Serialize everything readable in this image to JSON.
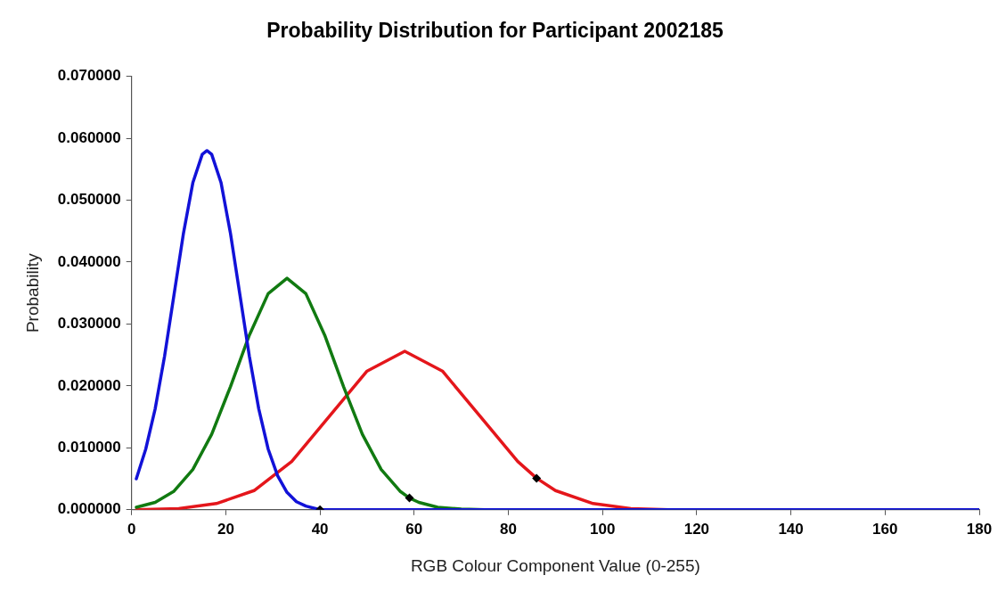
{
  "chart_data": {
    "type": "line",
    "title": "Probability Distribution for Participant 2002185",
    "xlabel": "RGB Colour Component Value (0-255)",
    "ylabel": "Probability",
    "xlim": [
      0,
      180
    ],
    "xticks": [
      0,
      20,
      40,
      60,
      80,
      100,
      120,
      140,
      160,
      180
    ],
    "ylim": [
      0,
      0.07
    ],
    "yticks": [
      {
        "value": 0,
        "label": "0.000000"
      },
      {
        "value": 0.01,
        "label": "0.010000"
      },
      {
        "value": 0.02,
        "label": "0.020000"
      },
      {
        "value": 0.03,
        "label": "0.030000"
      },
      {
        "value": 0.04,
        "label": "0.040000"
      },
      {
        "value": 0.05,
        "label": "0.050000"
      },
      {
        "value": 0.06,
        "label": "0.060000"
      },
      {
        "value": 0.07,
        "label": "0.070000"
      }
    ],
    "series": [
      {
        "color": "#e4161b",
        "x": [
          1,
          10,
          18,
          26,
          34,
          42,
          50,
          58,
          66,
          74,
          82,
          86,
          90,
          98,
          106,
          114,
          120,
          180
        ],
        "values": [
          0,
          0.0002,
          0.001,
          0.0031,
          0.0078,
          0.0151,
          0.0224,
          0.0256,
          0.0224,
          0.0151,
          0.0078,
          0.0051,
          0.0031,
          0.001,
          0.0002,
          0,
          0,
          0
        ]
      },
      {
        "color": "#117a11",
        "x": [
          1,
          5,
          9,
          13,
          17,
          21,
          25,
          29,
          33,
          37,
          41,
          45,
          49,
          53,
          57,
          59,
          61,
          65,
          70,
          75,
          180
        ],
        "values": [
          0.0004,
          0.0012,
          0.003,
          0.0065,
          0.0122,
          0.0199,
          0.0282,
          0.0349,
          0.0374,
          0.0349,
          0.0282,
          0.0199,
          0.0122,
          0.0065,
          0.003,
          0.0019,
          0.0012,
          0.0004,
          0.0001,
          0,
          0
        ]
      },
      {
        "color": "#1212d8",
        "x": [
          1,
          3,
          5,
          7,
          9,
          11,
          13,
          15,
          16,
          17,
          19,
          21,
          23,
          25,
          27,
          29,
          31,
          33,
          35,
          37,
          40,
          180
        ],
        "values": [
          0.005,
          0.0098,
          0.0163,
          0.0248,
          0.0347,
          0.0446,
          0.0528,
          0.0574,
          0.058,
          0.0574,
          0.0528,
          0.0446,
          0.0347,
          0.0248,
          0.0163,
          0.0098,
          0.0055,
          0.0028,
          0.0013,
          0.0006,
          0,
          0
        ]
      },
      {
        "type": "scatter",
        "marker": "diamond",
        "color": "#000000",
        "x": [
          40,
          59,
          86
        ],
        "values": [
          0,
          0.0019,
          0.0051
        ]
      }
    ]
  }
}
